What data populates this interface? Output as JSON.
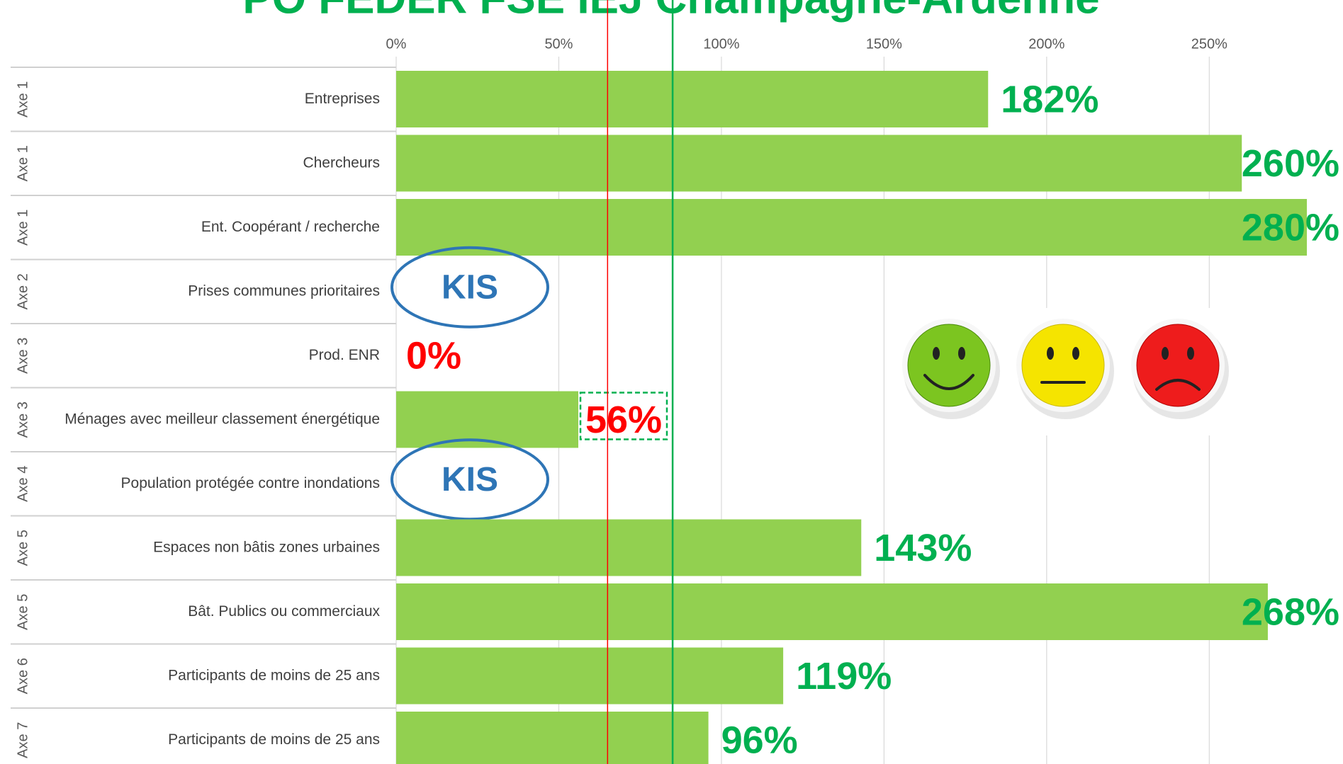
{
  "chart_data": {
    "type": "bar",
    "orientation": "horizontal",
    "title": "PO FEDER FSE IEJ Champagne-Ardenne",
    "groups": [
      "Axe 1",
      "Axe 1",
      "Axe 1",
      "Axe 2",
      "Axe 3",
      "Axe 3",
      "Axe 4",
      "Axe 5",
      "Axe 5",
      "Axe 6",
      "Axe 7"
    ],
    "categories": [
      "Entreprises",
      "Chercheurs",
      "Ent. Coopérant / recherche",
      "Prises communes prioritaires",
      "Prod. ENR",
      "Ménages avec meilleur classement énergétique",
      "Population protégée contre inondations",
      "Espaces non bâtis zones urbaines",
      "Bât. Publics ou commerciaux",
      "Participants de moins de 25 ans",
      "Participants de moins de 25 ans"
    ],
    "values": [
      182,
      260,
      280,
      null,
      0,
      56,
      null,
      143,
      268,
      119,
      96
    ],
    "value_labels": [
      "182%",
      "260%",
      "280%",
      null,
      "0%",
      "56%",
      null,
      "143%",
      "268%",
      "119%",
      "96%"
    ],
    "value_label_colors": [
      "#00b050",
      "#00b050",
      "#00b050",
      null,
      "#ff0000",
      "#ff0000",
      null,
      "#00b050",
      "#00b050",
      "#00b050",
      "#00b050"
    ],
    "annotations": [
      null,
      null,
      null,
      "KIS",
      null,
      null,
      "KIS",
      null,
      null,
      null,
      null
    ],
    "color": "#92d050",
    "xlim": [
      0,
      280
    ],
    "xticks": [
      {
        "value": 0,
        "label": "0%"
      },
      {
        "value": 50,
        "label": "50%"
      },
      {
        "value": 100,
        "label": "100%"
      },
      {
        "value": 150,
        "label": "150%"
      },
      {
        "value": 200,
        "label": "200%"
      },
      {
        "value": 250,
        "label": "250%"
      }
    ],
    "reference_lines": [
      {
        "value": 65,
        "color": "#ff0000"
      },
      {
        "value": 85,
        "color": "#00b050"
      }
    ],
    "grid": true
  }
}
